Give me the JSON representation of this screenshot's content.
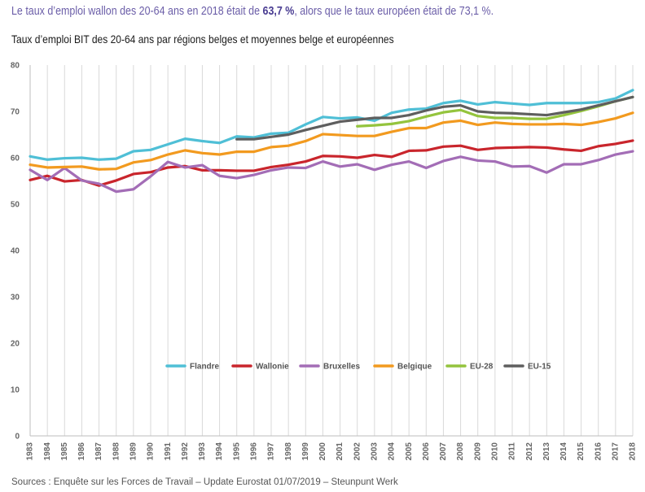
{
  "headline": {
    "before": "Le taux d’emploi wallon des 20-64 ans en 2018 était de ",
    "highlight": "63,7 %",
    "after": ", alors que le taux européen était de 73,1 %."
  },
  "source": "Sources : Enquête sur les Forces de Travail – Update Eurostat 01/07/2019 – Steunpunt Werk",
  "chart_data": {
    "type": "line",
    "title": "Taux d’emploi BIT des 20-64 ans par régions belges et moyennes belge et européennes",
    "xlabel": "",
    "ylabel": "",
    "ylim": [
      0,
      80
    ],
    "yticks": [
      0,
      10,
      20,
      30,
      40,
      50,
      60,
      70,
      80
    ],
    "grid": "vertical",
    "legend_position": "lower-middle",
    "x": [
      "1983",
      "1984",
      "1985",
      "1986",
      "1987",
      "1988",
      "1989",
      "1990",
      "1991",
      "1992",
      "1993",
      "1994",
      "1995",
      "1996",
      "1997",
      "1998",
      "1999",
      "2000",
      "2001",
      "2002",
      "2003",
      "2004",
      "2005",
      "2006",
      "2007",
      "2008",
      "2009",
      "2010",
      "2011",
      "2012",
      "2013",
      "2014",
      "2015",
      "2016",
      "2017",
      "2018"
    ],
    "series": [
      {
        "name": "Flandre",
        "color": "#4fbfd6",
        "values": [
          60.3,
          59.6,
          59.9,
          60.0,
          59.6,
          59.8,
          61.4,
          61.7,
          62.9,
          64.1,
          63.6,
          63.2,
          64.6,
          64.4,
          65.2,
          65.4,
          67.2,
          68.8,
          68.5,
          68.7,
          68.0,
          69.7,
          70.4,
          70.6,
          71.8,
          72.3,
          71.5,
          72.0,
          71.7,
          71.4,
          71.8,
          71.8,
          71.8,
          72.0,
          72.8,
          74.6
        ]
      },
      {
        "name": "Wallonie",
        "color": "#c9252c",
        "values": [
          55.2,
          56.1,
          54.9,
          55.2,
          54.0,
          55.1,
          56.5,
          56.9,
          57.9,
          58.2,
          57.3,
          57.3,
          57.2,
          57.2,
          58.0,
          58.5,
          59.2,
          60.4,
          60.3,
          60.0,
          60.6,
          60.2,
          61.5,
          61.6,
          62.4,
          62.6,
          61.7,
          62.1,
          62.2,
          62.3,
          62.2,
          61.8,
          61.5,
          62.5,
          63.0,
          63.7
        ]
      },
      {
        "name": "Bruxelles",
        "color": "#a36db6",
        "values": [
          57.4,
          55.2,
          57.8,
          55.1,
          54.4,
          52.7,
          53.2,
          56.0,
          59.1,
          57.9,
          58.4,
          56.1,
          55.6,
          56.3,
          57.3,
          57.9,
          57.8,
          59.2,
          58.1,
          58.6,
          57.4,
          58.5,
          59.2,
          57.8,
          59.3,
          60.2,
          59.4,
          59.2,
          58.1,
          58.2,
          56.8,
          58.6,
          58.6,
          59.5,
          60.7,
          61.4
        ]
      },
      {
        "name": "Belgique",
        "color": "#f29a1f",
        "values": [
          58.5,
          57.9,
          58.0,
          58.1,
          57.5,
          57.6,
          59.0,
          59.5,
          60.7,
          61.6,
          61.0,
          60.7,
          61.3,
          61.3,
          62.3,
          62.6,
          63.6,
          65.1,
          64.9,
          64.7,
          64.7,
          65.6,
          66.4,
          66.4,
          67.6,
          68.0,
          67.1,
          67.6,
          67.3,
          67.2,
          67.2,
          67.3,
          67.1,
          67.7,
          68.5,
          69.7
        ]
      },
      {
        "name": "EU-28",
        "color": "#94c43d",
        "values": [
          null,
          null,
          null,
          null,
          null,
          null,
          null,
          null,
          null,
          null,
          null,
          null,
          null,
          null,
          null,
          null,
          null,
          null,
          null,
          66.8,
          67.0,
          67.3,
          67.9,
          68.9,
          69.8,
          70.3,
          69.0,
          68.6,
          68.6,
          68.4,
          68.4,
          69.2,
          70.1,
          71.1,
          72.2,
          73.1
        ]
      },
      {
        "name": "EU-15",
        "color": "#5e5e5e",
        "values": [
          null,
          null,
          null,
          null,
          null,
          null,
          null,
          null,
          null,
          null,
          null,
          null,
          64.0,
          64.0,
          64.5,
          65.0,
          66.0,
          66.9,
          67.8,
          68.2,
          68.6,
          68.6,
          69.2,
          70.2,
          71.0,
          71.3,
          70.0,
          69.7,
          69.6,
          69.4,
          69.2,
          69.8,
          70.4,
          71.3,
          72.2,
          73.1
        ]
      }
    ]
  }
}
